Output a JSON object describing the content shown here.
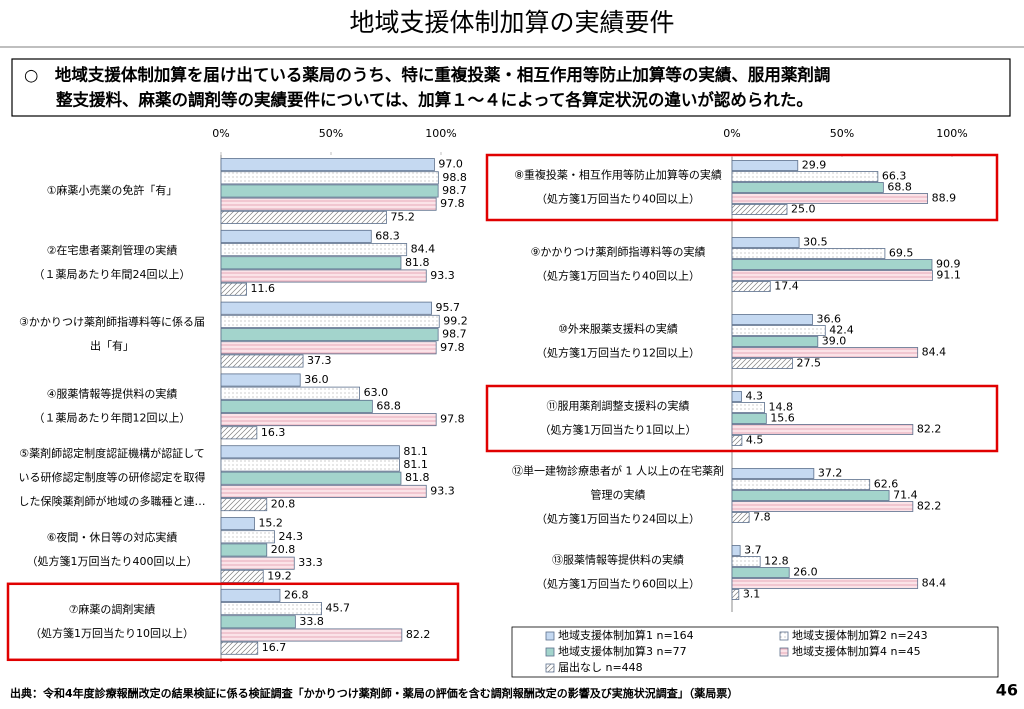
{
  "title": "地域支援体制加算の実績要件",
  "summary": [
    "○　地域支援体制加算を届け出ている薬局のうち、特に重複投薬・相互作用等防止加算等の実績、服用薬剤調",
    "整支援料、麻薬の調剤等の実績要件については、加算１～４によって各算定状況の違いが認められた。"
  ],
  "chart_data": [
    {
      "type": "bar",
      "orientation": "horizontal",
      "categories": [
        [
          "①麻薬小売業の免許「有」"
        ],
        [
          "②在宅患者薬剤管理の実績",
          "（１薬局あたり年間24回以上）"
        ],
        [
          "③かかりつけ薬剤師指導料等に係る届",
          "出「有」"
        ],
        [
          "④服薬情報等提供料の実績",
          "（１薬局あたり年間12回以上）"
        ],
        [
          "⑤薬剤師認定制度認証機構が認証して",
          "いる研修認定制度等の研修認定を取得",
          "した保険薬剤師が地域の多職種と連…"
        ],
        [
          "⑥夜間・休日等の対応実績",
          "（処方箋1万回当たり400回以上）"
        ],
        [
          "⑦麻薬の調剤実績",
          "（処方箋1万回当たり10回以上）"
        ]
      ],
      "xlim": [
        0,
        100
      ],
      "xticks": [
        {
          "value": 0,
          "label": "0%"
        },
        {
          "value": 50,
          "label": "50%"
        },
        {
          "value": 100,
          "label": "100%"
        }
      ],
      "series": [
        {
          "color": "#c5d9f1",
          "pattern": "solid",
          "values": [
            97.0,
            68.3,
            95.7,
            36.0,
            81.1,
            15.2,
            26.8
          ],
          "value_labels": [
            "97.0",
            "68.3",
            "95.7",
            "36.0",
            "81.1",
            "15.2",
            "26.8"
          ]
        },
        {
          "color": "#808080",
          "pattern": "dots",
          "values": [
            98.8,
            84.4,
            99.2,
            63.0,
            81.1,
            24.3,
            45.7
          ],
          "value_labels": [
            "98.8",
            "84.4",
            "99.2",
            "63.0",
            "81.1",
            "24.3",
            "45.7"
          ]
        },
        {
          "color": "#a3d4cc",
          "pattern": "solid",
          "values": [
            98.7,
            81.8,
            98.7,
            68.8,
            81.8,
            20.8,
            33.8
          ],
          "value_labels": [
            "98.7",
            "81.8",
            "98.7",
            "68.8",
            "81.8",
            "20.8",
            "33.8"
          ]
        },
        {
          "color": "#e39aab",
          "pattern": "lines",
          "values": [
            97.8,
            93.3,
            97.8,
            97.8,
            93.3,
            33.3,
            82.2
          ],
          "value_labels": [
            "97.8",
            "93.3",
            "97.8",
            "97.8",
            "93.3",
            "33.3",
            "82.2"
          ]
        },
        {
          "color": "#808080",
          "pattern": "hatch",
          "values": [
            75.2,
            11.6,
            37.3,
            16.3,
            20.8,
            19.2,
            16.7
          ],
          "value_labels": [
            "75.2",
            "11.6",
            "37.3",
            "16.3",
            "20.8",
            "19.2",
            "16.7"
          ]
        }
      ]
    },
    {
      "type": "bar",
      "orientation": "horizontal",
      "legend": "bottom",
      "categories": [
        [
          "⑧重複投薬・相互作用等防止加算等の実績",
          "（処方箋1万回当たり40回以上）"
        ],
        [
          "⑨かかりつけ薬剤師指導料等の実績",
          "（処方箋1万回当たり40回以上）"
        ],
        [
          "⑩外来服薬支援料の実績",
          "（処方箋1万回当たり12回以上）"
        ],
        [
          "⑪服用薬剤調整支援料の実績",
          "（処方箋1万回当たり1回以上）"
        ],
        [
          "⑫単一建物診療患者が 1 人以上の在宅薬剤",
          "管理の実績",
          "（処方箋1万回当たり24回以上）"
        ],
        [
          "⑬服薬情報等提供料の実績",
          "（処方箋1万回当たり60回以上）"
        ]
      ],
      "xlim": [
        0,
        100
      ],
      "xticks": [
        {
          "value": 0,
          "label": "0%"
        },
        {
          "value": 50,
          "label": "50%"
        },
        {
          "value": 100,
          "label": "100%"
        }
      ],
      "series": [
        {
          "name": "地域支援体制加算1  n=164",
          "color": "#c5d9f1",
          "pattern": "solid",
          "values": [
            29.9,
            30.5,
            36.6,
            4.3,
            37.2,
            3.7
          ],
          "value_labels": [
            "29.9",
            "30.5",
            "36.6",
            "4.3",
            "37.2",
            "3.7"
          ]
        },
        {
          "name": "地域支援体制加算2  n=243",
          "color": "#808080",
          "pattern": "dots",
          "values": [
            66.3,
            69.5,
            42.4,
            14.8,
            62.6,
            12.8
          ],
          "value_labels": [
            "66.3",
            "69.5",
            "42.4",
            "14.8",
            "62.6",
            "12.8"
          ]
        },
        {
          "name": "地域支援体制加算3  n=77",
          "color": "#a3d4cc",
          "pattern": "solid",
          "values": [
            68.8,
            90.9,
            39.0,
            15.6,
            71.4,
            26.0
          ],
          "value_labels": [
            "68.8",
            "90.9",
            "39.0",
            "15.6",
            "71.4",
            "26.0"
          ]
        },
        {
          "name": "地域支援体制加算4  n=45",
          "color": "#e39aab",
          "pattern": "lines",
          "values": [
            88.9,
            91.1,
            84.4,
            82.2,
            82.2,
            84.4
          ],
          "value_labels": [
            "88.9",
            "91.1",
            "84.4",
            "82.2",
            "82.2",
            "84.4"
          ]
        },
        {
          "name": "届出なし  n=448",
          "color": "#808080",
          "pattern": "hatch",
          "values": [
            25.0,
            17.4,
            27.5,
            4.5,
            7.8,
            3.1
          ],
          "value_labels": [
            "25.0",
            "17.4",
            "27.5",
            "4.5",
            "7.8",
            "3.1"
          ]
        }
      ]
    }
  ],
  "source": "出典：令和4年度診療報酬改定の結果検証に係る検証調査「かかりつけ薬剤師・薬局の評価を含む調剤報酬改定の影響及び実施状況調査」（薬局票）",
  "page_number": "46"
}
